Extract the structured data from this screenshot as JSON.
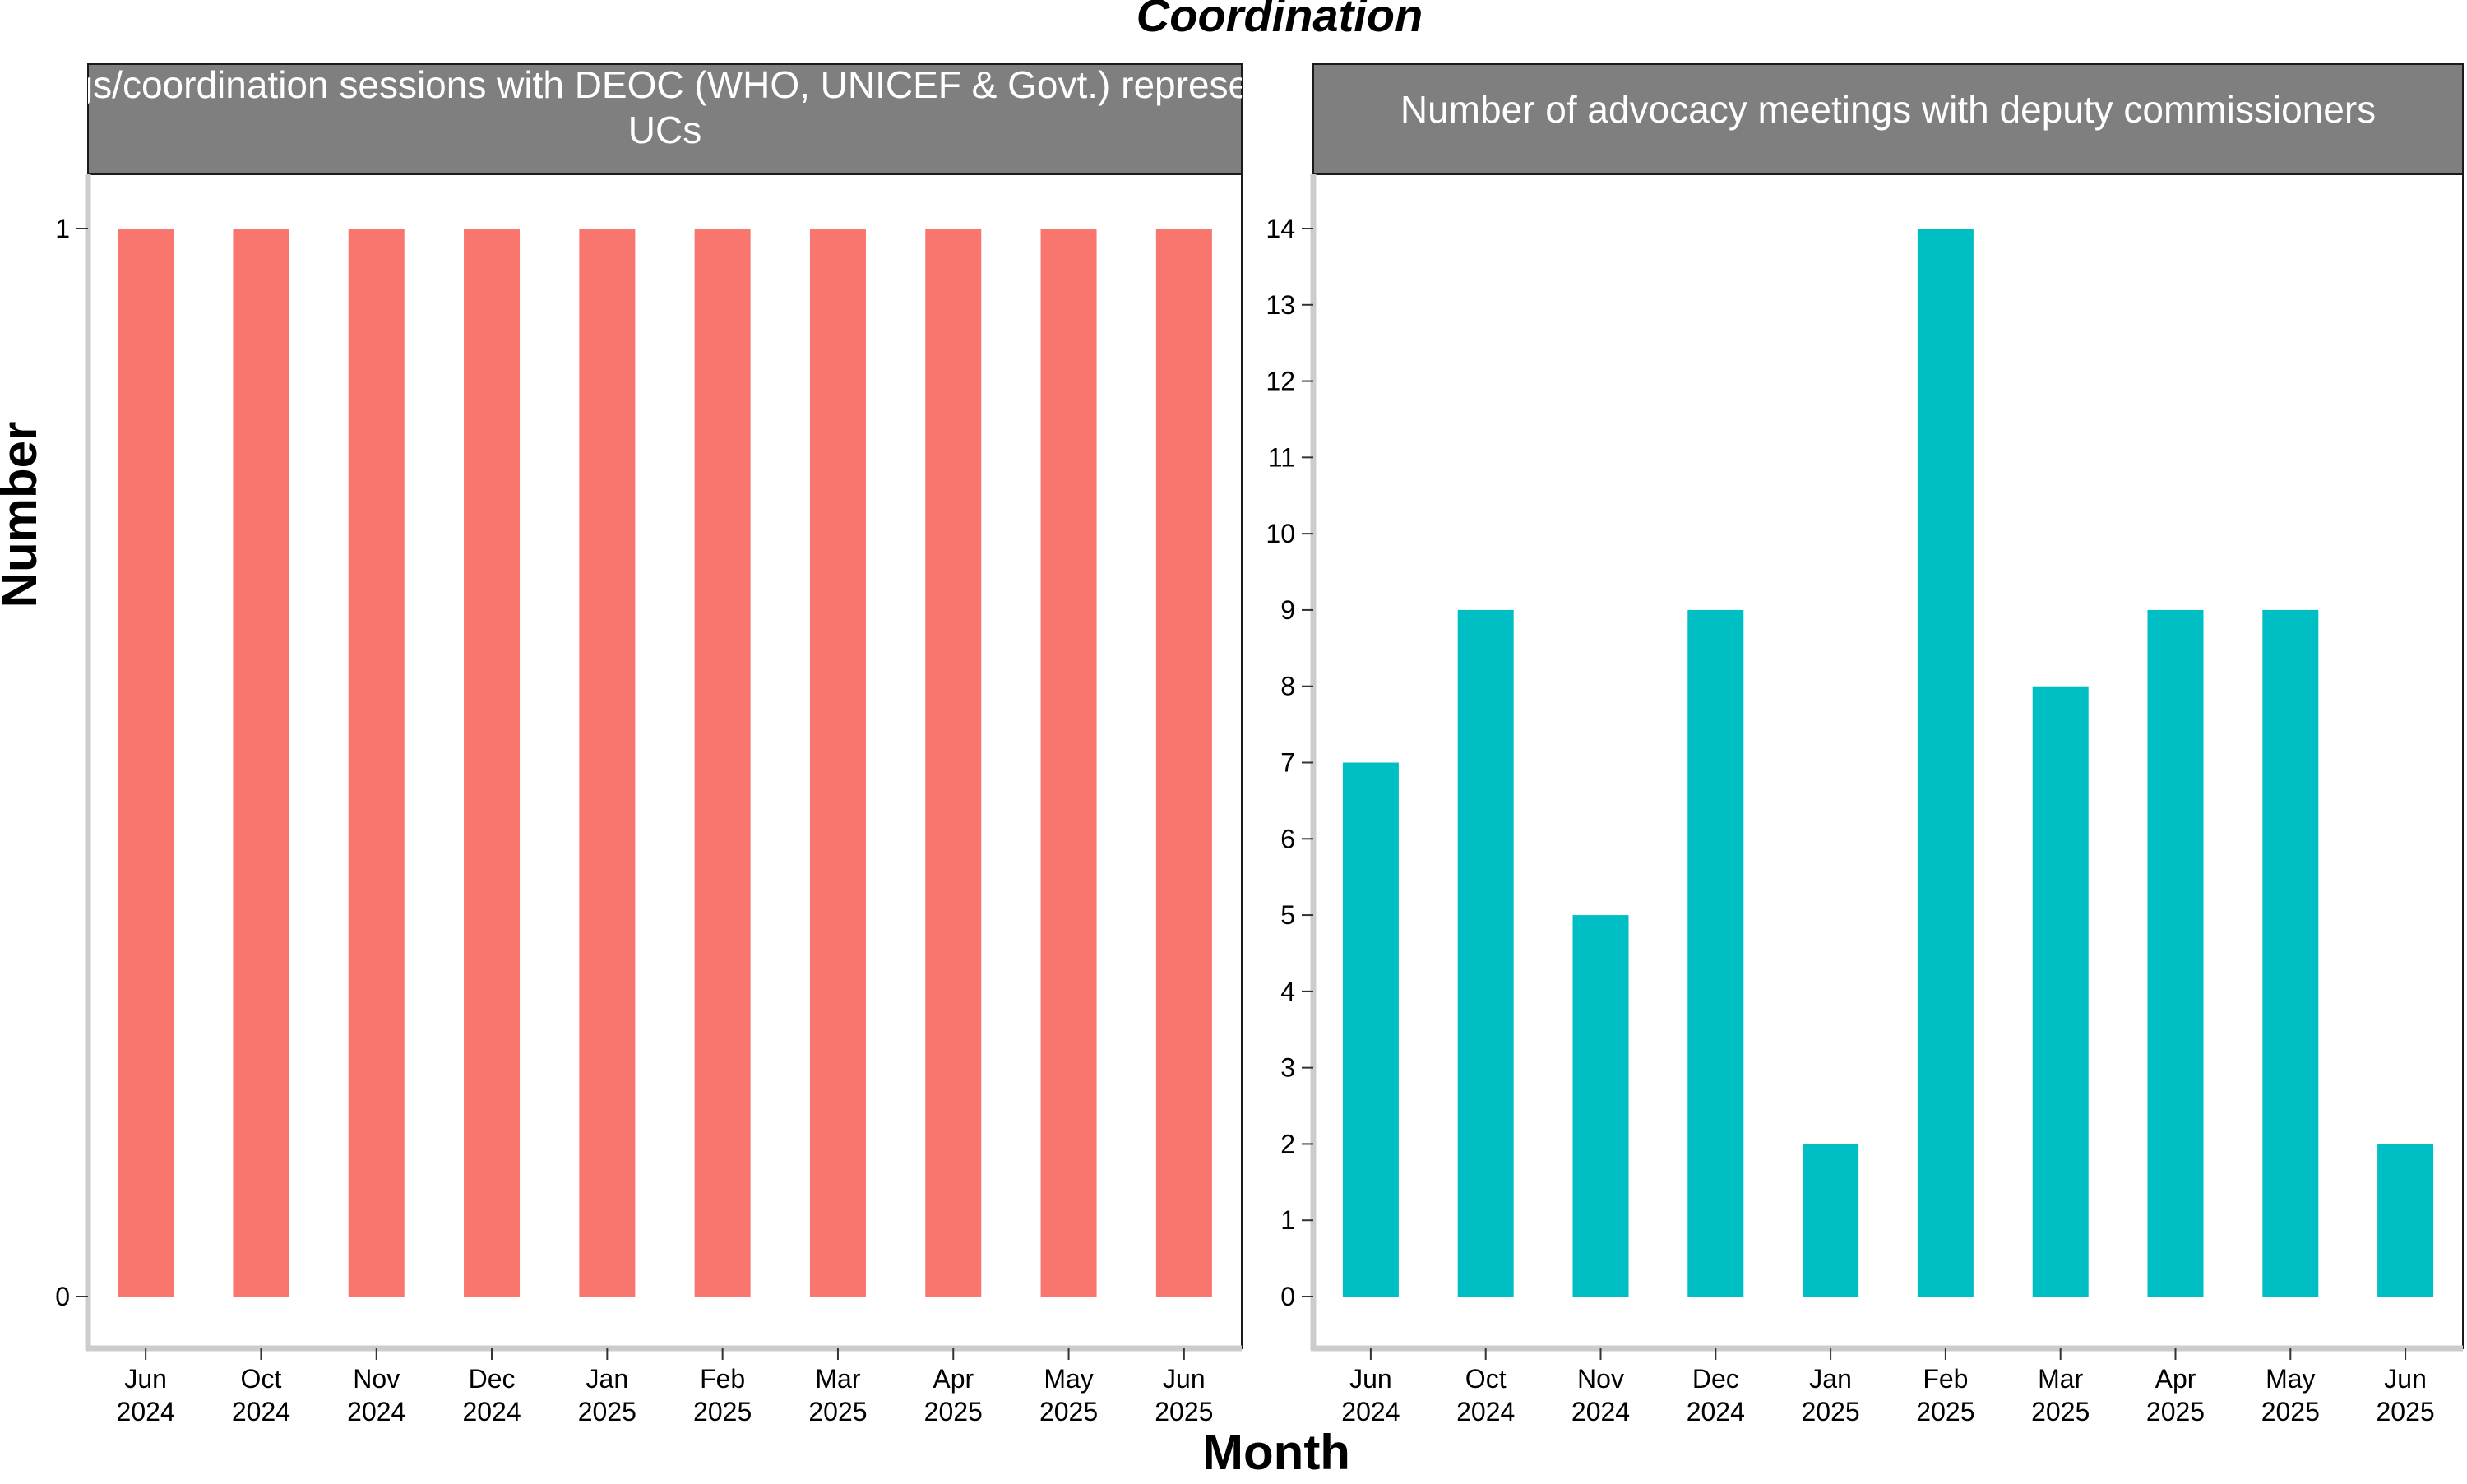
{
  "chart_data": {
    "type": "bar",
    "title": "Coordination",
    "xlabel": "Month",
    "ylabel": "Number",
    "grid": false,
    "panels": [
      {
        "strip_lines": [
          "Number of meetings/coordination sessions with DEOC (WHO, UNICEF & Govt.) representatives to support",
          "UCs"
        ],
        "color": "#F8766D",
        "ylim": [
          0,
          1
        ],
        "yticks": [
          0,
          1
        ],
        "categories": [
          [
            "Jun",
            "2024"
          ],
          [
            "Oct",
            "2024"
          ],
          [
            "Nov",
            "2024"
          ],
          [
            "Dec",
            "2024"
          ],
          [
            "Jan",
            "2025"
          ],
          [
            "Feb",
            "2025"
          ],
          [
            "Mar",
            "2025"
          ],
          [
            "Apr",
            "2025"
          ],
          [
            "May",
            "2025"
          ],
          [
            "Jun",
            "2025"
          ]
        ],
        "values": [
          1,
          1,
          1,
          1,
          1,
          1,
          1,
          1,
          1,
          1
        ]
      },
      {
        "strip_lines": [
          "Number of advocacy meetings with deputy commissioners"
        ],
        "color": "#00BFC4",
        "ylim": [
          0,
          14
        ],
        "yticks": [
          0,
          1,
          2,
          3,
          4,
          5,
          6,
          7,
          8,
          9,
          10,
          11,
          12,
          13,
          14
        ],
        "categories": [
          [
            "Jun",
            "2024"
          ],
          [
            "Oct",
            "2024"
          ],
          [
            "Nov",
            "2024"
          ],
          [
            "Dec",
            "2024"
          ],
          [
            "Jan",
            "2025"
          ],
          [
            "Feb",
            "2025"
          ],
          [
            "Mar",
            "2025"
          ],
          [
            "Apr",
            "2025"
          ],
          [
            "May",
            "2025"
          ],
          [
            "Jun",
            "2025"
          ]
        ],
        "values": [
          7,
          9,
          5,
          9,
          2,
          14,
          8,
          9,
          9,
          2
        ]
      }
    ]
  }
}
